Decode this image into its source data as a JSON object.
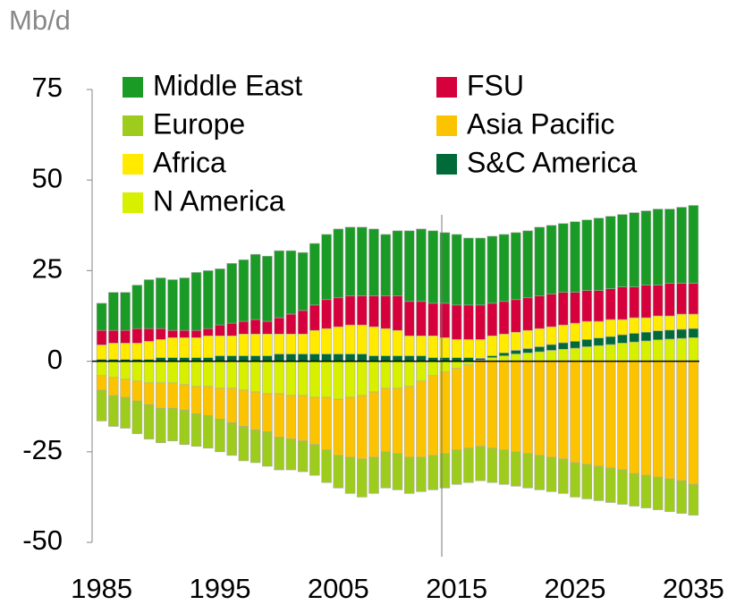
{
  "chart_data": {
    "type": "bar",
    "stacked": true,
    "y_unit": "Mb/d",
    "categories": [
      1985,
      null,
      null,
      null,
      null,
      null,
      null,
      null,
      null,
      null,
      1995,
      null,
      null,
      null,
      null,
      null,
      null,
      null,
      null,
      null,
      2005,
      null,
      null,
      null,
      null,
      null,
      null,
      null,
      null,
      null,
      2015,
      null,
      null,
      null,
      null,
      null,
      null,
      null,
      null,
      null,
      2025,
      null,
      null,
      null,
      null,
      null,
      null,
      null,
      null,
      null,
      2035
    ],
    "ylim": [
      -50,
      75
    ],
    "yticks": [
      -50,
      -25,
      0,
      25,
      50,
      75
    ],
    "series": [
      {
        "name": "Middle East",
        "color": "#1a9b26",
        "values": [
          7.5,
          10.5,
          10.5,
          12,
          13.5,
          14,
          14,
          14.5,
          16,
          16,
          15.5,
          16.5,
          17,
          18,
          18,
          18.5,
          17.5,
          16,
          17,
          18,
          19,
          19,
          19,
          18.5,
          17,
          18,
          19.5,
          20,
          20,
          19.5,
          19.5,
          18.5,
          18.5,
          18.5,
          18.5,
          18.5,
          18.5,
          19,
          19,
          19,
          19.5,
          19.5,
          20,
          20,
          20,
          20.5,
          20.5,
          21,
          20.5,
          21,
          21.5
        ]
      },
      {
        "name": "FSU",
        "color": "#d6003d",
        "values": [
          4,
          3.5,
          3.5,
          4,
          3.5,
          3,
          2,
          2,
          2,
          2,
          3,
          3.5,
          3.5,
          4,
          3.5,
          4.5,
          5.5,
          6.5,
          7,
          8,
          8,
          8,
          8,
          8.5,
          9,
          9.5,
          9.5,
          9.5,
          9,
          9.5,
          9.5,
          9.5,
          9.5,
          9,
          9,
          9,
          9,
          9,
          9,
          9,
          8.5,
          8.5,
          8.5,
          8.5,
          9,
          8.5,
          9,
          8.5,
          9,
          8.5,
          8.5
        ]
      },
      {
        "name": "Europe",
        "color": "#9dcc1c",
        "values": [
          -8.5,
          -8.5,
          -8.5,
          -9,
          -9.5,
          -9.5,
          -9,
          -9.5,
          -9,
          -9,
          -9,
          -9,
          -9.5,
          -9,
          -9.5,
          -9,
          -8.5,
          -8.5,
          -8.5,
          -9,
          -9,
          -10,
          -10.5,
          -10,
          -10,
          -10,
          -10,
          -9.5,
          -9.5,
          -9.5,
          -9.5,
          -9.5,
          -9.5,
          -9.5,
          -9.5,
          -9.5,
          -9.5,
          -9.5,
          -9.5,
          -9.5,
          -9.5,
          -9.5,
          -9.5,
          -9.5,
          -9.5,
          -9,
          -9,
          -9,
          -9,
          -9,
          -8.5
        ]
      },
      {
        "name": "Asia Pacific",
        "color": "#fcc400",
        "values": [
          -4,
          -5,
          -5,
          -5.5,
          -6,
          -7,
          -7,
          -7,
          -7.5,
          -8,
          -8.5,
          -9.5,
          -10,
          -10.5,
          -10.5,
          -12,
          -12,
          -12.5,
          -13,
          -14.5,
          -15.5,
          -16.5,
          -17.5,
          -18,
          -17.5,
          -18,
          -19.5,
          -21,
          -22,
          -22.5,
          -22.5,
          -23,
          -23.5,
          -24,
          -24.5,
          -25,
          -25.5,
          -26,
          -26.5,
          -27,
          -28,
          -28.5,
          -29,
          -29.5,
          -30,
          -31,
          -31.5,
          -32,
          -32.5,
          -33,
          -34
        ]
      },
      {
        "name": "Africa",
        "color": "#ffea00",
        "values": [
          4,
          4.5,
          4.5,
          4.5,
          5,
          5,
          5.5,
          5.5,
          5.5,
          6,
          5.5,
          5.5,
          6,
          6,
          6,
          5.5,
          5.5,
          5.5,
          6.5,
          7,
          7.5,
          8,
          8,
          8,
          7.5,
          7,
          5.5,
          5.5,
          6,
          5.5,
          5,
          5,
          5.2,
          5.5,
          5.2,
          5,
          5,
          5,
          4.9,
          4.9,
          5,
          5,
          4.6,
          4.7,
          4.2,
          4.3,
          4,
          4.1,
          3.9,
          4.2,
          4
        ]
      },
      {
        "name": "S&C America",
        "color": "#006b38",
        "values": [
          0.5,
          0.5,
          0.5,
          0.5,
          0.5,
          1,
          1,
          1,
          1,
          1,
          1.5,
          1.5,
          1.5,
          1.5,
          1.5,
          2,
          2,
          2,
          2,
          2,
          2,
          2,
          2,
          1.5,
          1.5,
          1.5,
          1.5,
          1.5,
          1,
          1,
          1,
          1,
          0.5,
          0.5,
          0.8,
          1,
          1.2,
          1.4,
          1.6,
          1.8,
          1.9,
          2,
          2.1,
          2.2,
          2.3,
          2.4,
          2.4,
          2.5,
          2.5,
          2.5,
          2.5
        ]
      },
      {
        "name": "N America",
        "color": "#d6f000",
        "values": [
          -4,
          -4.5,
          -5,
          -5.5,
          -6,
          -6,
          -6,
          -6.5,
          -7,
          -7,
          -7.5,
          -7.5,
          -8,
          -8.5,
          -9,
          -9,
          -9.5,
          -9.5,
          -10,
          -10,
          -10.5,
          -10,
          -9.5,
          -8.5,
          -7.5,
          -7.5,
          -7,
          -5.5,
          -4,
          -3,
          -2,
          -1,
          0.3,
          1,
          1.5,
          2,
          2.3,
          2.6,
          3,
          3.3,
          3.6,
          4,
          4.3,
          4.6,
          5,
          5.3,
          5.6,
          5.9,
          6.1,
          6.3,
          6.5
        ]
      }
    ]
  }
}
